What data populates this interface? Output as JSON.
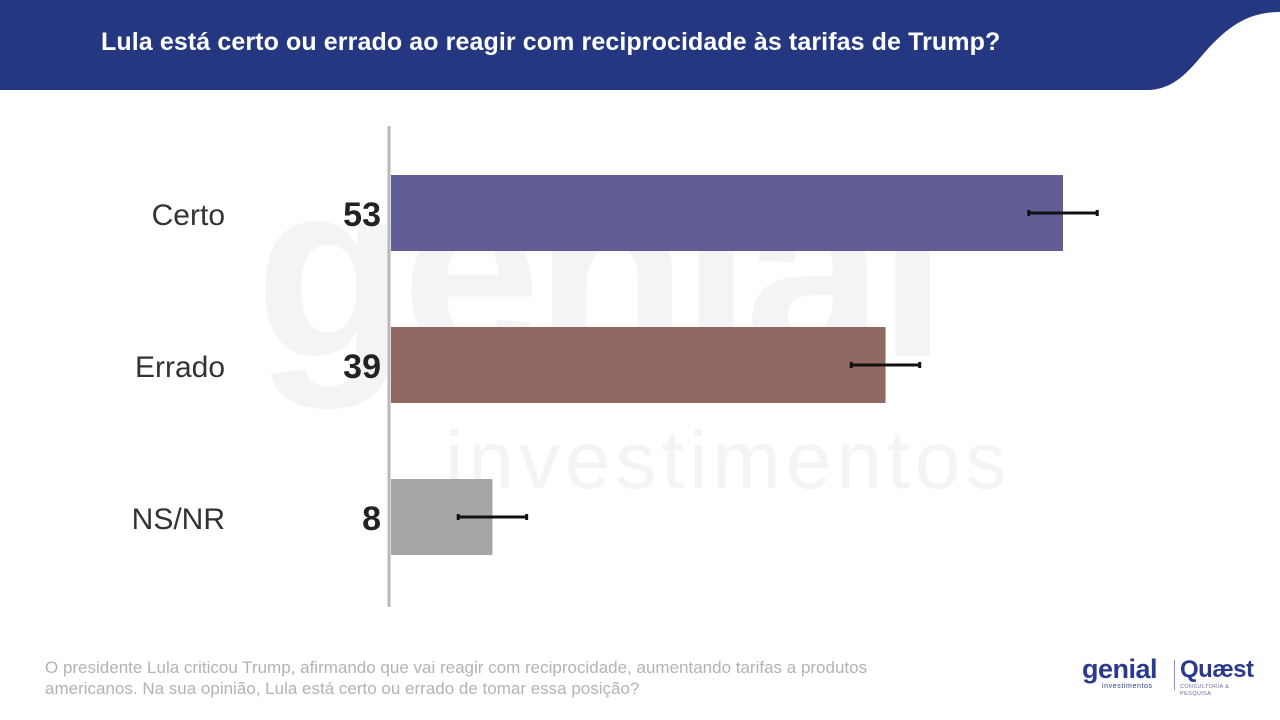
{
  "header": {
    "title": "Lula está certo ou errado ao reagir com reciprocidade às tarifas de Trump?",
    "background_color": "#263782"
  },
  "watermark": {
    "brand": "genial",
    "sub": "investimentos"
  },
  "chart_data": {
    "type": "bar",
    "orientation": "horizontal",
    "title": "Lula está certo ou errado ao reagir com reciprocidade às tarifas de Trump?",
    "categories": [
      "Certo",
      "Errado",
      "NS/NR"
    ],
    "values": [
      53,
      39,
      8
    ],
    "value_labels": [
      "53",
      "39",
      "8"
    ],
    "colors": [
      "#615d96",
      "#916862",
      "#a6a6a6"
    ],
    "error_margin": 2.7,
    "xlim": [
      0,
      53
    ],
    "grid": false,
    "legend": "none"
  },
  "footnote": {
    "text": "O presidente Lula criticou Trump, afirmando que vai reagir com reciprocidade, aumentando tarifas a produtos americanos. Na sua opinião, Lula está certo ou errado de tomar essa posição?"
  },
  "logos": {
    "genial_main": "genial",
    "genial_sub": "investimentos",
    "quaest_main": "Quæst",
    "quaest_sub": "CONSULTORIA & PESQUISA"
  }
}
